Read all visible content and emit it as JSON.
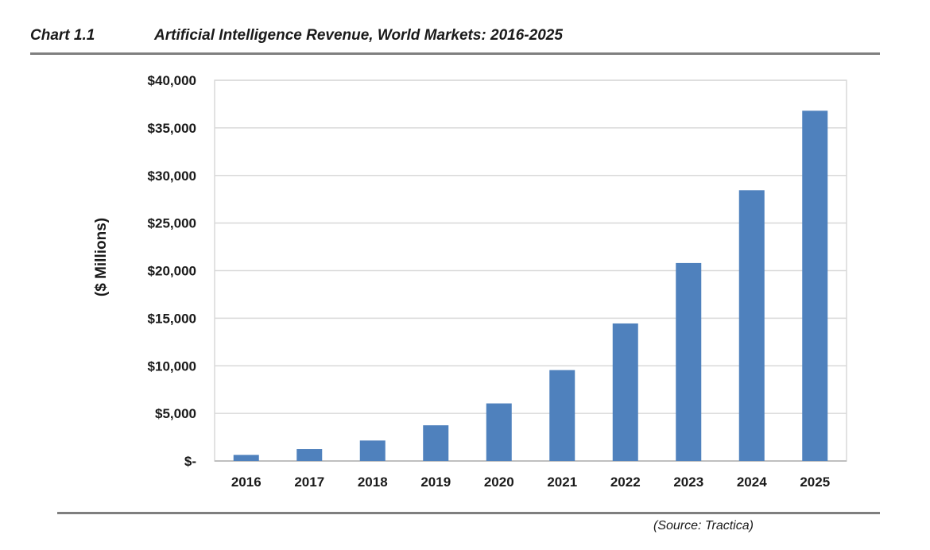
{
  "header": {
    "chart_number": "Chart 1.1",
    "title": "Artificial Intelligence Revenue, World Markets: 2016-2025"
  },
  "source": "(Source: Tractica)",
  "colors": {
    "bar": "#4f81bd",
    "grid": "#d9d9d9",
    "rule": "#7f7f7f"
  },
  "chart_data": {
    "type": "bar",
    "title": "Artificial Intelligence Revenue, World Markets: 2016-2025",
    "xlabel": "",
    "ylabel": "($ Millions)",
    "categories": [
      "2016",
      "2017",
      "2018",
      "2019",
      "2020",
      "2021",
      "2022",
      "2023",
      "2024",
      "2025"
    ],
    "values": [
      640,
      1250,
      2150,
      3750,
      6050,
      9550,
      14450,
      20800,
      28450,
      36800
    ],
    "ylim": [
      0,
      40000
    ],
    "yticks": [
      0,
      5000,
      10000,
      15000,
      20000,
      25000,
      30000,
      35000,
      40000
    ],
    "ytick_labels": [
      "$-",
      "$5,000",
      "$10,000",
      "$15,000",
      "$20,000",
      "$25,000",
      "$30,000",
      "$35,000",
      "$40,000"
    ],
    "grid": true,
    "legend": "none"
  }
}
